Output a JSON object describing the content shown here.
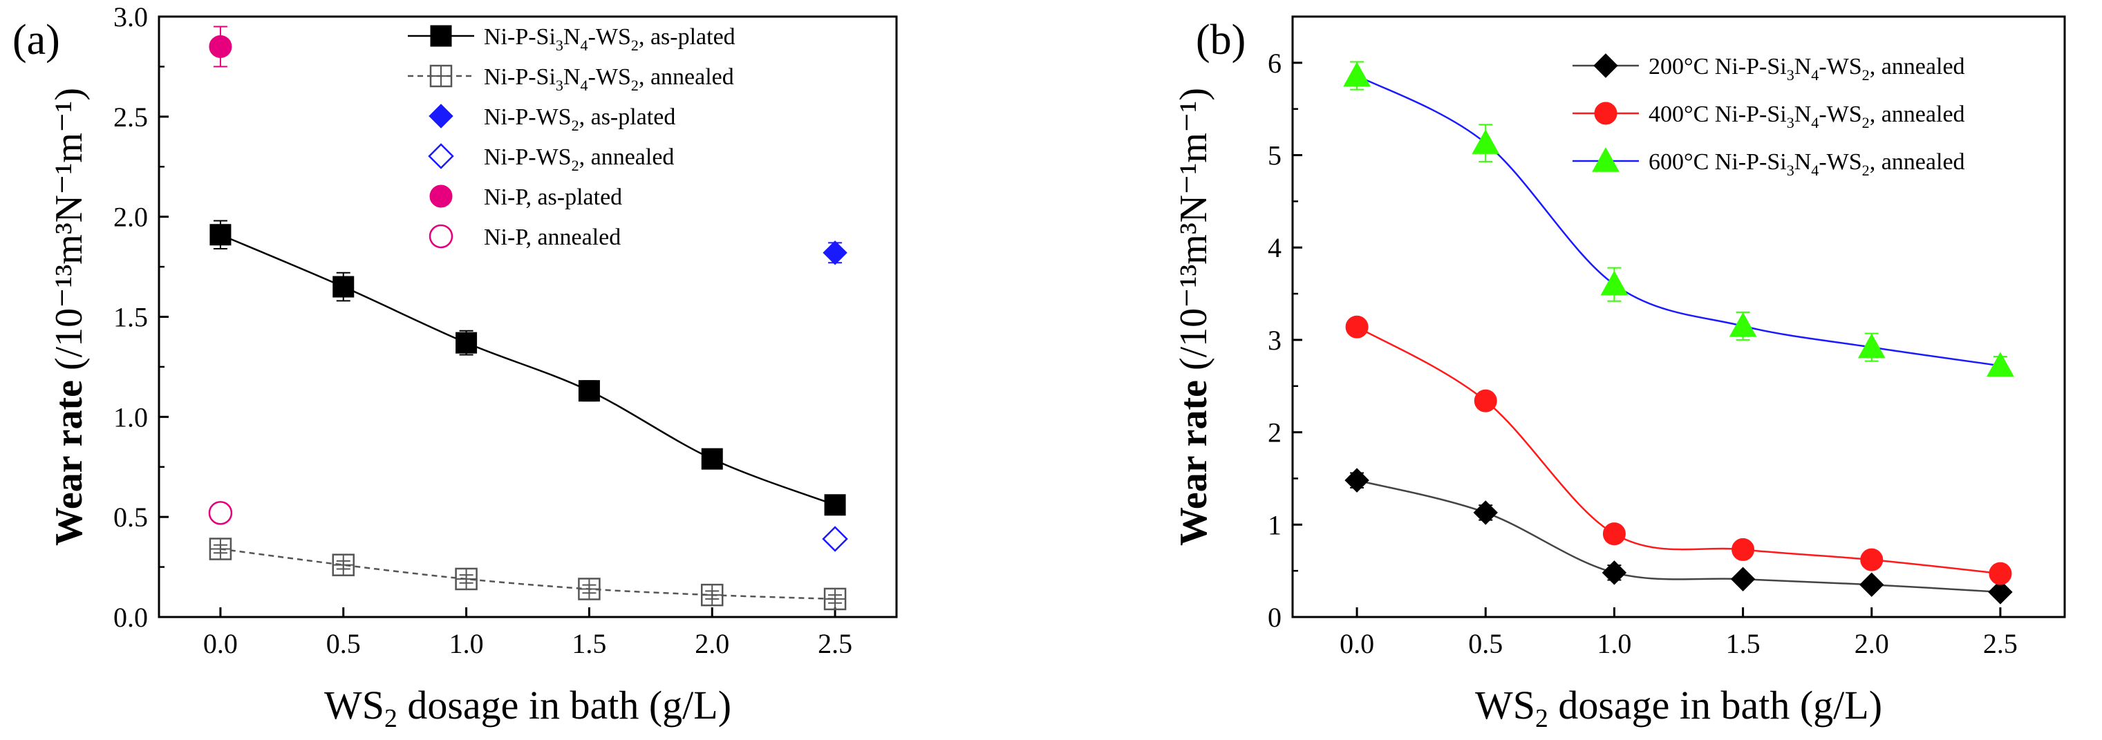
{
  "chart_data": [
    {
      "type": "line",
      "panel_label": "(a)",
      "xlabel": "dosage in bath (g/L)",
      "xlabel_prefix": "WS",
      "xlabel_sub": "2",
      "ylabel": "Wear rate",
      "ylabel_unit": "(/10⁻¹³m³N⁻¹m⁻¹)",
      "xlim": [
        -0.25,
        2.75
      ],
      "ylim": [
        0.0,
        3.0
      ],
      "xticks": [
        0.0,
        0.5,
        1.0,
        1.5,
        2.0,
        2.5
      ],
      "xtick_labels": [
        "0.0",
        "0.5",
        "1.0",
        "1.5",
        "2.0",
        "2.5"
      ],
      "yticks": [
        0.0,
        0.5,
        1.0,
        1.5,
        2.0,
        2.5,
        3.0
      ],
      "ytick_labels": [
        "0.0",
        "0.5",
        "1.0",
        "1.5",
        "2.0",
        "2.5",
        "3.0"
      ],
      "legend_position": "top-right",
      "series": [
        {
          "name": "Ni-P-Si3N4-WS2, as-plated",
          "legend": [
            "Ni-P-Si",
            "3",
            "N",
            "4",
            "-WS",
            "2",
            ", as-plated"
          ],
          "marker": "square-filled",
          "color": "#000000",
          "line": "solid",
          "x": [
            0.0,
            0.5,
            1.0,
            1.5,
            2.0,
            2.5
          ],
          "values": [
            1.91,
            1.65,
            1.37,
            1.13,
            0.79,
            0.56
          ],
          "errors": [
            0.07,
            0.07,
            0.06,
            0.05,
            0.04,
            0.03
          ]
        },
        {
          "name": "Ni-P-Si3N4-WS2, annealed",
          "legend": [
            "Ni-P-Si",
            "3",
            "N",
            "4",
            "-WS",
            "2",
            ", annealed"
          ],
          "marker": "square-open",
          "color": "#555555",
          "line": "dashed",
          "x": [
            0.0,
            0.5,
            1.0,
            1.5,
            2.0,
            2.5
          ],
          "values": [
            0.34,
            0.26,
            0.19,
            0.14,
            0.11,
            0.09
          ],
          "errors": [
            0.02,
            0.02,
            0.02,
            0.02,
            0.02,
            0.02
          ]
        },
        {
          "name": "Ni-P-WS2, as-plated",
          "legend": [
            "Ni-P-WS",
            "2",
            ", as-plated"
          ],
          "marker": "diamond-filled",
          "color": "#1a1aff",
          "line": "none",
          "x": [
            2.5
          ],
          "values": [
            1.82
          ],
          "errors": [
            0.05
          ]
        },
        {
          "name": "Ni-P-WS2, annealed",
          "legend": [
            "Ni-P-WS",
            "2",
            ", annealed"
          ],
          "marker": "diamond-open",
          "color": "#1a1aff",
          "line": "none",
          "x": [
            2.5
          ],
          "values": [
            0.39
          ],
          "errors": [
            0.02
          ]
        },
        {
          "name": "Ni-P, as-plated",
          "legend": [
            "Ni-P, as-plated"
          ],
          "marker": "circle-filled",
          "color": "#e6007e",
          "line": "none",
          "x": [
            0.0
          ],
          "values": [
            2.85
          ],
          "errors": [
            0.1
          ]
        },
        {
          "name": "Ni-P, annealed",
          "legend": [
            "Ni-P, annealed"
          ],
          "marker": "circle-open",
          "color": "#e6007e",
          "line": "none",
          "x": [
            0.0
          ],
          "values": [
            0.52
          ],
          "errors": [
            0.02
          ]
        }
      ]
    },
    {
      "type": "line",
      "panel_label": "(b)",
      "xlabel": "dosage in bath (g/L)",
      "xlabel_prefix": "WS",
      "xlabel_sub": "2",
      "ylabel": "Wear rate",
      "ylabel_unit": "(/10⁻¹³m³N⁻¹m⁻¹)",
      "xlim": [
        -0.25,
        2.75
      ],
      "ylim": [
        0,
        6.5
      ],
      "xticks": [
        0.0,
        0.5,
        1.0,
        1.5,
        2.0,
        2.5
      ],
      "xtick_labels": [
        "0.0",
        "0.5",
        "1.0",
        "1.5",
        "2.0",
        "2.5"
      ],
      "yticks": [
        0,
        1,
        2,
        3,
        4,
        5,
        6
      ],
      "ytick_labels": [
        "0",
        "1",
        "2",
        "3",
        "4",
        "5",
        "6"
      ],
      "legend_position": "top-right",
      "series": [
        {
          "name": "200°C Ni-P-Si3N4-WS2, annealed",
          "legend": [
            "200°C Ni-P-Si",
            "3",
            "N",
            "4",
            "-WS",
            "2",
            ", annealed"
          ],
          "marker": "diamond-filled",
          "color": "#000000",
          "line": "solid",
          "line_color": "#444444",
          "x": [
            0.0,
            0.5,
            1.0,
            1.5,
            2.0,
            2.5
          ],
          "values": [
            1.48,
            1.13,
            0.48,
            0.41,
            0.35,
            0.27
          ],
          "errors": [
            0.08,
            0.08,
            0.08,
            0.05,
            0.05,
            0.05
          ]
        },
        {
          "name": "400°C Ni-P-Si3N4-WS2, annealed",
          "legend": [
            "400°C Ni-P-Si",
            "3",
            "N",
            "4",
            "-WS",
            "2",
            ", annealed"
          ],
          "marker": "circle-filled",
          "color": "#ff1a1a",
          "line": "solid",
          "line_color": "#ff1a1a",
          "x": [
            0.0,
            0.5,
            1.0,
            1.5,
            2.0,
            2.5
          ],
          "values": [
            3.14,
            2.34,
            0.9,
            0.73,
            0.62,
            0.47
          ],
          "errors": [
            0.08,
            0.08,
            0.08,
            0.08,
            0.08,
            0.08
          ]
        },
        {
          "name": "600°C Ni-P-Si3N4-WS2, annealed",
          "legend": [
            "600°C Ni-P-Si",
            "3",
            "N",
            "4",
            "-WS",
            "2",
            ", annealed"
          ],
          "marker": "triangle-filled",
          "color": "#33ff00",
          "line": "solid",
          "line_color": "#1a1aff",
          "x": [
            0.0,
            0.5,
            1.0,
            1.5,
            2.0,
            2.5
          ],
          "values": [
            5.86,
            5.13,
            3.6,
            3.15,
            2.92,
            2.72
          ],
          "errors": [
            0.15,
            0.2,
            0.18,
            0.15,
            0.15,
            0.1
          ]
        }
      ]
    }
  ]
}
